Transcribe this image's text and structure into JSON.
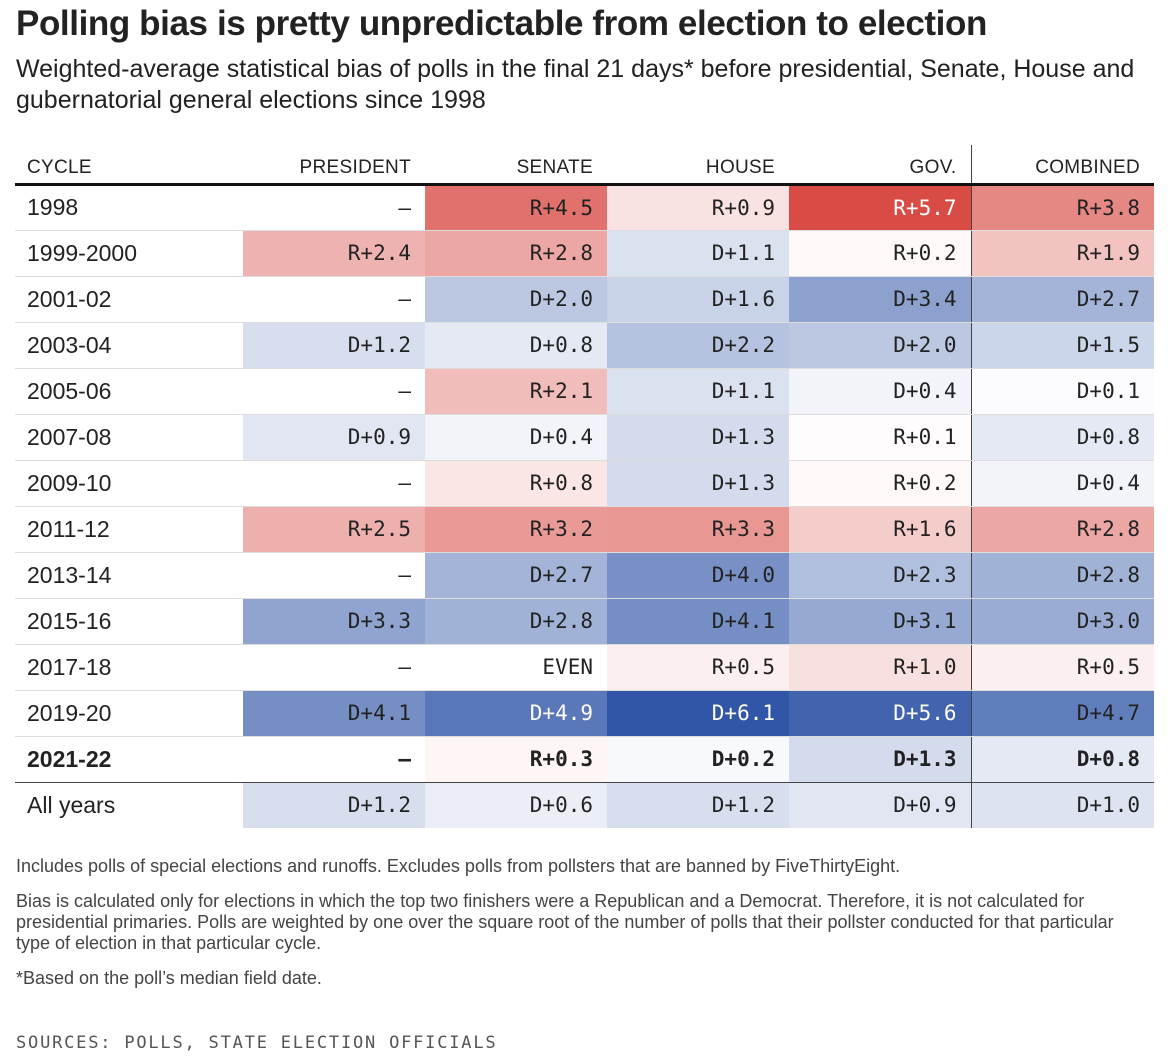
{
  "title": "Polling bias is pretty unpredictable from election to election",
  "subtitle": "Weighted-average statistical bias of polls in the final 21 days* before presidential, Senate, House and gubernatorial general elections since 1998",
  "colors": {
    "republican": "#d43b34",
    "democrat": "#2d53a6",
    "neutral": "#ffffff",
    "text": "#222222"
  },
  "chart_data": {
    "type": "table",
    "columns": [
      "CYCLE",
      "PRESIDENT",
      "SENATE",
      "HOUSE",
      "GOV.",
      "COMBINED"
    ],
    "rows": [
      {
        "cycle": "1998",
        "values": [
          "–",
          "R+4.5",
          "R+0.9",
          "R+5.7",
          "R+3.8"
        ]
      },
      {
        "cycle": "1999-2000",
        "values": [
          "R+2.4",
          "R+2.8",
          "D+1.1",
          "R+0.2",
          "R+1.9"
        ]
      },
      {
        "cycle": "2001-02",
        "values": [
          "–",
          "D+2.0",
          "D+1.6",
          "D+3.4",
          "D+2.7"
        ]
      },
      {
        "cycle": "2003-04",
        "values": [
          "D+1.2",
          "D+0.8",
          "D+2.2",
          "D+2.0",
          "D+1.5"
        ]
      },
      {
        "cycle": "2005-06",
        "values": [
          "–",
          "R+2.1",
          "D+1.1",
          "D+0.4",
          "D+0.1"
        ]
      },
      {
        "cycle": "2007-08",
        "values": [
          "D+0.9",
          "D+0.4",
          "D+1.3",
          "R+0.1",
          "D+0.8"
        ]
      },
      {
        "cycle": "2009-10",
        "values": [
          "–",
          "R+0.8",
          "D+1.3",
          "R+0.2",
          "D+0.4"
        ]
      },
      {
        "cycle": "2011-12",
        "values": [
          "R+2.5",
          "R+3.2",
          "R+3.3",
          "R+1.6",
          "R+2.8"
        ]
      },
      {
        "cycle": "2013-14",
        "values": [
          "–",
          "D+2.7",
          "D+4.0",
          "D+2.3",
          "D+2.8"
        ]
      },
      {
        "cycle": "2015-16",
        "values": [
          "D+3.3",
          "D+2.8",
          "D+4.1",
          "D+3.1",
          "D+3.0"
        ]
      },
      {
        "cycle": "2017-18",
        "values": [
          "–",
          "EVEN",
          "R+0.5",
          "R+1.0",
          "R+0.5"
        ]
      },
      {
        "cycle": "2019-20",
        "values": [
          "D+4.1",
          "D+4.9",
          "D+6.1",
          "D+5.6",
          "D+4.7"
        ]
      },
      {
        "cycle": "2021-22",
        "values": [
          "–",
          "R+0.3",
          "D+0.2",
          "D+1.3",
          "D+0.8"
        ],
        "bold": true
      },
      {
        "cycle": "All years",
        "values": [
          "D+1.2",
          "D+0.6",
          "D+1.2",
          "D+0.9",
          "D+1.0"
        ]
      }
    ]
  },
  "notes": [
    "Includes polls of special elections and runoffs. Excludes polls from pollsters that are banned by FiveThirtyEight.",
    "Bias is calculated only for elections in which the top two finishers were a Republican and a Democrat. Therefore, it is not calculated for presidential primaries. Polls are weighted by one over the square root of the number of polls that their pollster conducted for that particular type of election in that particular cycle.",
    "*Based on the poll’s median field date."
  ],
  "source": "SOURCES: POLLS, STATE ELECTION OFFICIALS"
}
